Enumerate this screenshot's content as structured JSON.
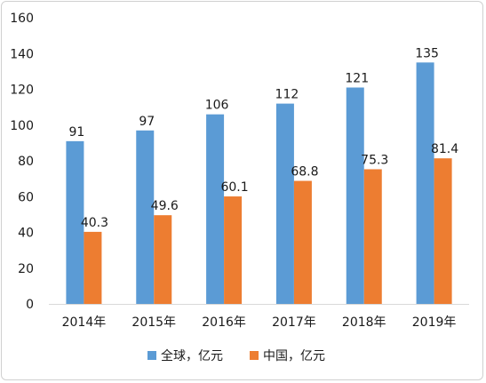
{
  "chart_data": {
    "type": "bar",
    "title": "",
    "xlabel": "",
    "ylabel": "",
    "categories": [
      "2014年",
      "2015年",
      "2016年",
      "2017年",
      "2018年",
      "2019年"
    ],
    "series": [
      {
        "name": "全球，亿元",
        "color": "#5b9bd5",
        "values": [
          91,
          97,
          106,
          112,
          121,
          135
        ]
      },
      {
        "name": "中国，亿元",
        "color": "#ed7d31",
        "values": [
          40.3,
          49.6,
          60.1,
          68.8,
          75.3,
          81.4
        ]
      }
    ],
    "ylim": [
      0,
      160
    ],
    "yticks": [
      0,
      20,
      40,
      60,
      80,
      100,
      120,
      140,
      160
    ],
    "grid": false,
    "legend_position": "bottom",
    "data_labels": true
  }
}
